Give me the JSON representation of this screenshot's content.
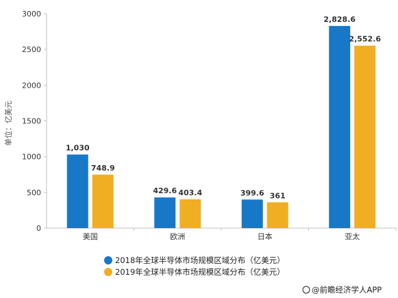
{
  "chart_data": {
    "type": "bar",
    "categories": [
      "美国",
      "欧洲",
      "日本",
      "亚太"
    ],
    "series": [
      {
        "name": "2018年全球半导体市场规模区域分布（亿美元）",
        "color": "#1878C8",
        "values": [
          1030,
          429.6,
          399.6,
          2828.6
        ],
        "labels": [
          "1,030",
          "429.6",
          "399.6",
          "2,828.6"
        ]
      },
      {
        "name": "2019年全球半导体市场规模区域分布（亿美元）",
        "color": "#F0AE22",
        "values": [
          748.9,
          403.4,
          361,
          2552.6
        ],
        "labels": [
          "748.9",
          "403.4",
          "361",
          "2,552.6"
        ]
      }
    ],
    "ylabel": "单位：亿美元",
    "ylim": [
      0,
      3000
    ],
    "yticks": [
      "0",
      "500",
      "1000",
      "1500",
      "2000",
      "2500",
      "3000"
    ],
    "grid": false,
    "legend_position": "bottom"
  },
  "credit": "@前瞻经济学人APP"
}
